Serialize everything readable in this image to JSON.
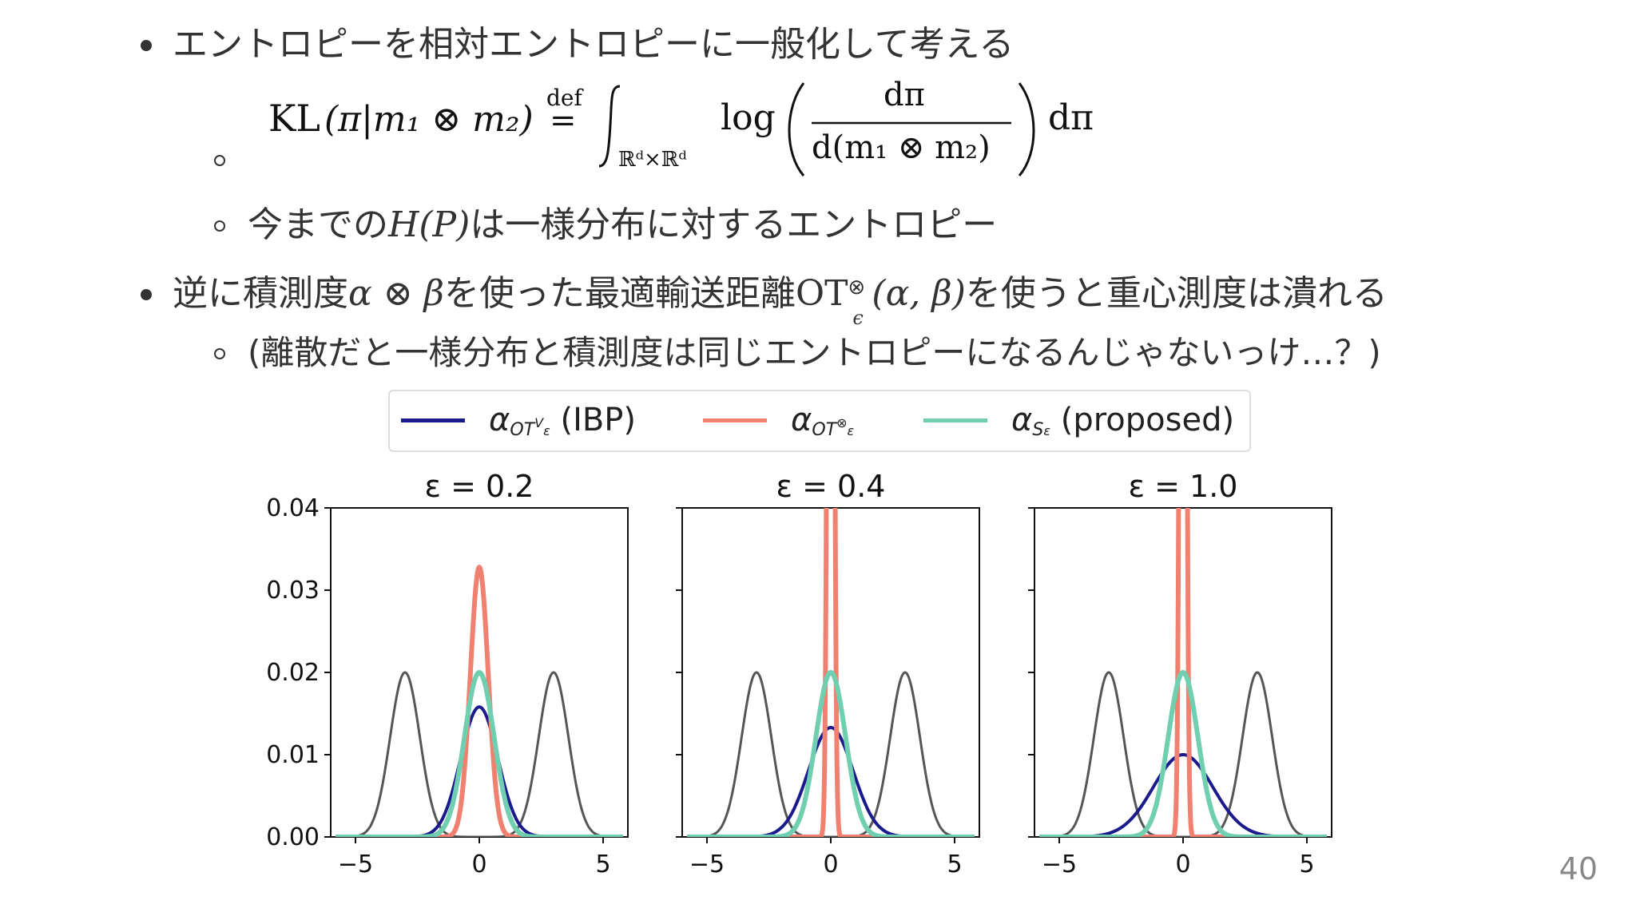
{
  "slide": {
    "bullet1": "エントロピーを相対エントロピーに一般化して考える",
    "formula": {
      "lhs_kl": "KL",
      "lhs_args": "(π|m₁ ⊗ m₂)",
      "def": "def",
      "eq": "=",
      "domain": "ℝᵈ×ℝᵈ",
      "log": "log",
      "num": "dπ",
      "den": "d(m₁ ⊗ m₂)",
      "tail": "dπ"
    },
    "sub1_pre": "今までの",
    "sub1_math": "H(P)",
    "sub1_post": "は一様分布に対するエントロピー",
    "bullet2_pre": "逆に積測度",
    "bullet2_math1": "α ⊗ β",
    "bullet2_mid": "を使った最適輸送距離",
    "bullet2_ot": "OT",
    "bullet2_sup": "⊗",
    "bullet2_sub": "ϵ",
    "bullet2_args": "(α, β)",
    "bullet2_post": "を使うと重心測度は潰れる",
    "sub2": "(離散だと一様分布と積測度は同じエントロピーになるんじゃないっけ…？)",
    "page_number": "40"
  },
  "legend": {
    "items": [
      {
        "alpha": "α",
        "sub": "OT",
        "subsub": "ε",
        "subsup": "V",
        "suffix": " (IBP)",
        "color": "#1a1a8c"
      },
      {
        "alpha": "α",
        "sub": "OT",
        "subsub": "ε",
        "subsup": "⊗",
        "suffix": "",
        "color": "#f08070"
      },
      {
        "alpha": "α",
        "sub": "S",
        "subsub": "ε",
        "subsup": "",
        "suffix": " (proposed)",
        "color": "#6fcfb0"
      }
    ]
  },
  "chart_data": [
    {
      "type": "line",
      "title": "ε = 0.2",
      "xlim": [
        -6,
        6
      ],
      "ylim": [
        0,
        0.04
      ],
      "xticks": [
        -5,
        0,
        5
      ],
      "yticks": [
        0.0,
        0.01,
        0.02,
        0.03,
        0.04
      ],
      "series": [
        {
          "kind": "gray",
          "color": "#555555",
          "mixture": [
            [
              -3,
              0.6,
              0.02
            ],
            [
              3,
              0.6,
              0.02
            ]
          ]
        },
        {
          "kind": "ibp",
          "color": "#1a1a8c",
          "peak": 0.0158,
          "sigma": 0.75
        },
        {
          "kind": "prod",
          "color": "#f08070",
          "peak": 0.0328,
          "sigma": 0.36
        },
        {
          "kind": "proposed",
          "color": "#6fcfb0",
          "peak": 0.02,
          "sigma": 0.6
        }
      ]
    },
    {
      "type": "line",
      "title": "ε = 0.4",
      "xlim": [
        -6,
        6
      ],
      "ylim": [
        0,
        0.04
      ],
      "xticks": [
        -5,
        0,
        5
      ],
      "yticks": [
        0.0,
        0.01,
        0.02,
        0.03,
        0.04
      ],
      "series": [
        {
          "kind": "gray",
          "color": "#555555",
          "mixture": [
            [
              -3,
              0.6,
              0.02
            ],
            [
              3,
              0.6,
              0.02
            ]
          ]
        },
        {
          "kind": "ibp",
          "color": "#1a1a8c",
          "peak": 0.0133,
          "sigma": 0.9
        },
        {
          "kind": "prod",
          "color": "#f08070",
          "peak": 0.2,
          "sigma": 0.1
        },
        {
          "kind": "proposed",
          "color": "#6fcfb0",
          "peak": 0.02,
          "sigma": 0.6
        }
      ]
    },
    {
      "type": "line",
      "title": "ε = 1.0",
      "xlim": [
        -6,
        6
      ],
      "ylim": [
        0,
        0.04
      ],
      "xticks": [
        -5,
        0,
        5
      ],
      "yticks": [
        0.0,
        0.01,
        0.02,
        0.03,
        0.04
      ],
      "series": [
        {
          "kind": "gray",
          "color": "#555555",
          "mixture": [
            [
              -3,
              0.6,
              0.02
            ],
            [
              3,
              0.6,
              0.02
            ]
          ]
        },
        {
          "kind": "ibp",
          "color": "#1a1a8c",
          "peak": 0.01,
          "sigma": 1.2
        },
        {
          "kind": "prod",
          "color": "#f08070",
          "peak": 0.2,
          "sigma": 0.1
        },
        {
          "kind": "proposed",
          "color": "#6fcfb0",
          "peak": 0.02,
          "sigma": 0.6
        }
      ]
    }
  ]
}
